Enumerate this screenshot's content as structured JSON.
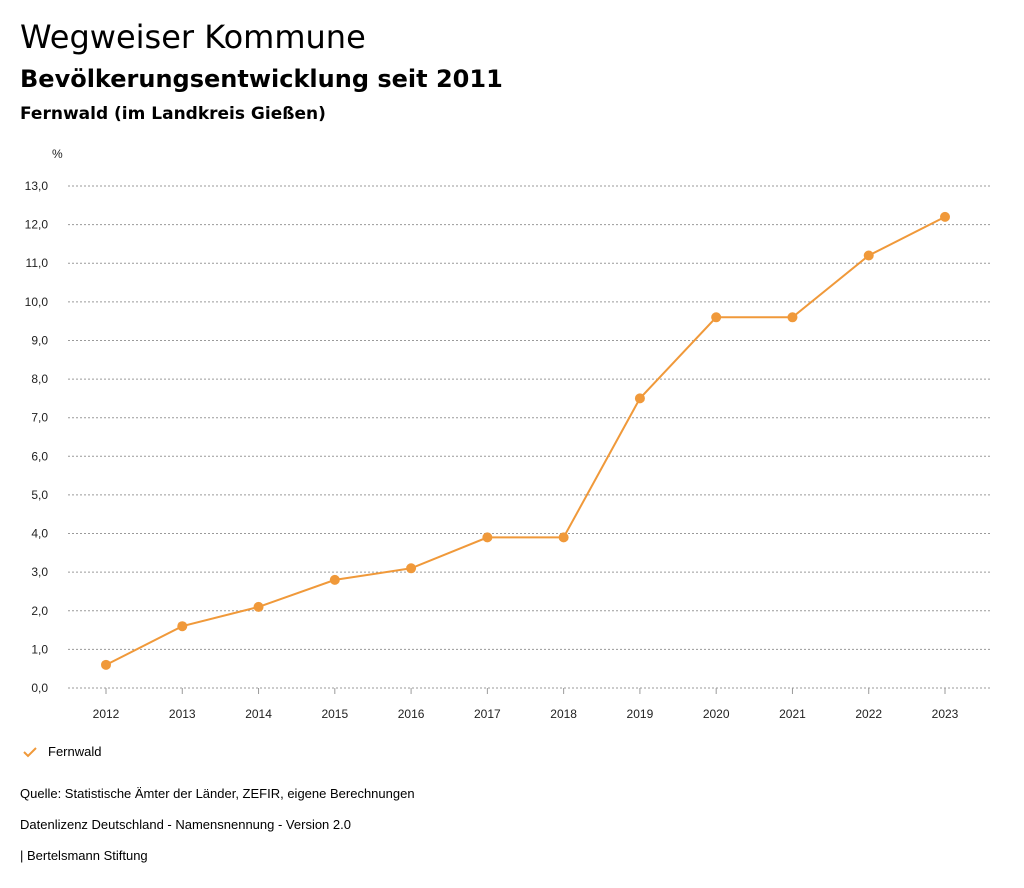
{
  "header": {
    "title": "Wegweiser Kommune",
    "subtitle": "Bevölkerungsentwicklung seit 2011",
    "region": "Fernwald (im Landkreis Gießen)"
  },
  "chart_data": {
    "type": "line",
    "title": "Bevölkerungsentwicklung seit 2011",
    "ylabel": "%",
    "xlabel": "",
    "ylim": [
      0,
      13
    ],
    "y_ticks": [
      0,
      1,
      2,
      3,
      4,
      5,
      6,
      7,
      8,
      9,
      10,
      11,
      12,
      13
    ],
    "y_tick_labels": [
      "0,0",
      "1,0",
      "2,0",
      "3,0",
      "4,0",
      "5,0",
      "6,0",
      "7,0",
      "8,0",
      "9,0",
      "10,0",
      "11,0",
      "12,0",
      "13,0"
    ],
    "categories": [
      "2012",
      "2013",
      "2014",
      "2015",
      "2016",
      "2017",
      "2018",
      "2019",
      "2020",
      "2021",
      "2022",
      "2023"
    ],
    "grid": true,
    "legend_position": "bottom-left",
    "series": [
      {
        "name": "Fernwald",
        "color": "#F0993A",
        "values": [
          0.6,
          1.6,
          2.1,
          2.8,
          3.1,
          3.9,
          3.9,
          7.5,
          9.6,
          9.6,
          11.2,
          12.2
        ]
      }
    ]
  },
  "legend": {
    "label": "Fernwald",
    "icon": "check-icon"
  },
  "footer": {
    "source": "Quelle: Statistische Ämter der Länder, ZEFIR, eigene Berechnungen",
    "license": "Datenlizenz Deutschland - Namensnennung - Version 2.0",
    "publisher": "| Bertelsmann Stiftung"
  }
}
